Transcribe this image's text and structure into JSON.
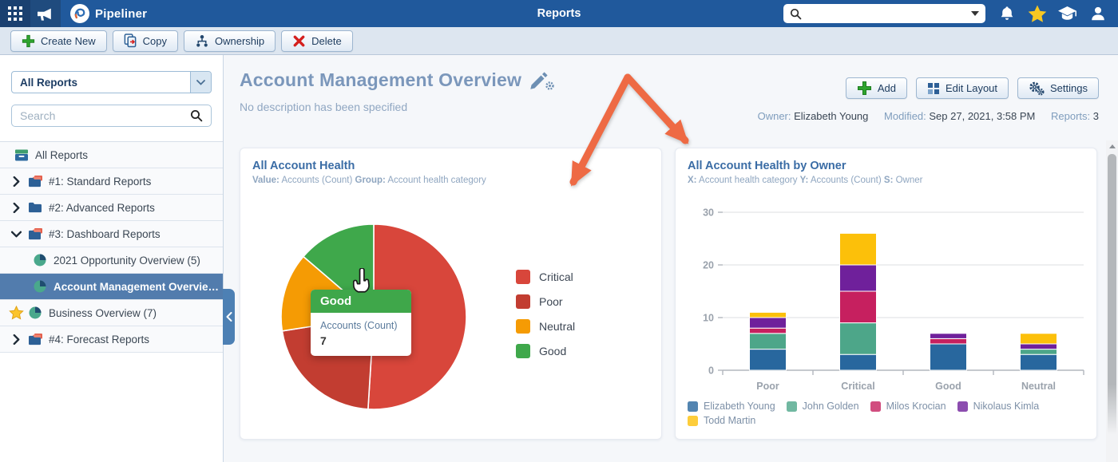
{
  "topbar": {
    "brand": "Pipeliner",
    "page_title": "Reports"
  },
  "toolbar": {
    "create_new": "Create New",
    "copy": "Copy",
    "ownership": "Ownership",
    "delete": "Delete"
  },
  "sidebar": {
    "filter_value": "All Reports",
    "search_placeholder": "Search",
    "tree": {
      "root_label": "All Reports",
      "items": [
        {
          "label": "#1: Standard Reports",
          "icon": "folder-stack",
          "chevron": "right"
        },
        {
          "label": "#2: Advanced Reports",
          "icon": "folder",
          "chevron": "right"
        },
        {
          "label": "#3: Dashboard Reports",
          "icon": "folder-stack",
          "chevron": "down"
        },
        {
          "label": "2021 Opportunity Overview (5)",
          "icon": "pie",
          "child": true
        },
        {
          "label": "Account Management Overvie…",
          "icon": "pie",
          "child": true,
          "selected": true
        },
        {
          "label": "Business Overview (7)",
          "icon": "pie",
          "starred": true
        },
        {
          "label": "#4: Forecast Reports",
          "icon": "folder-stack",
          "chevron": "right"
        }
      ]
    }
  },
  "header": {
    "title": "Account Management Overview",
    "description": "No description has been specified",
    "buttons": {
      "add": "Add",
      "edit_layout": "Edit Layout",
      "settings": "Settings"
    },
    "meta": {
      "owner_label": "Owner:",
      "owner": "Elizabeth Young",
      "modified_label": "Modified:",
      "modified": "Sep 27, 2021, 3:58 PM",
      "reports_label": "Reports:",
      "reports": "3"
    }
  },
  "chart_data": [
    {
      "type": "pie",
      "title": "All Account Health",
      "subtitle_parts": [
        [
          "Value:",
          "Accounts (Count)"
        ],
        [
          "Group:",
          "Account health category"
        ]
      ],
      "labels": [
        "Critical",
        "Poor",
        "Neutral",
        "Good"
      ],
      "values": [
        26,
        11,
        7,
        7
      ],
      "colors": [
        "#d8463b",
        "#c23d31",
        "#f59b04",
        "#3fa84b"
      ],
      "legend_position": "right",
      "tooltip": {
        "title": "Good",
        "label": "Accounts (Count)",
        "value": "7"
      }
    },
    {
      "type": "bar",
      "stacked": true,
      "title": "All Account Health by Owner",
      "subtitle_parts": [
        [
          "X:",
          "Account health category"
        ],
        [
          "Y:",
          "Accounts (Count)"
        ],
        [
          "S:",
          "Owner"
        ]
      ],
      "categories": [
        "Poor",
        "Critical",
        "Good",
        "Neutral"
      ],
      "series": [
        {
          "name": "Elizabeth Young",
          "color": "#28679e",
          "values": [
            4,
            3,
            5,
            3
          ]
        },
        {
          "name": "John Golden",
          "color": "#4da689",
          "values": [
            3,
            6,
            0,
            1
          ]
        },
        {
          "name": "Milos Krocian",
          "color": "#c6205f",
          "values": [
            1,
            6,
            1,
            0
          ]
        },
        {
          "name": "Nikolaus Kimla",
          "color": "#6f209b",
          "values": [
            2,
            5,
            1,
            1
          ]
        },
        {
          "name": "Todd Martin",
          "color": "#fcc00a",
          "values": [
            1,
            6,
            0,
            2
          ]
        }
      ],
      "ylim": [
        0,
        30
      ],
      "yticks": [
        0,
        10,
        20,
        30
      ],
      "grid": true,
      "legend_position": "bottom"
    }
  ],
  "annotation": {
    "arrow_color": "#ee6a44"
  }
}
